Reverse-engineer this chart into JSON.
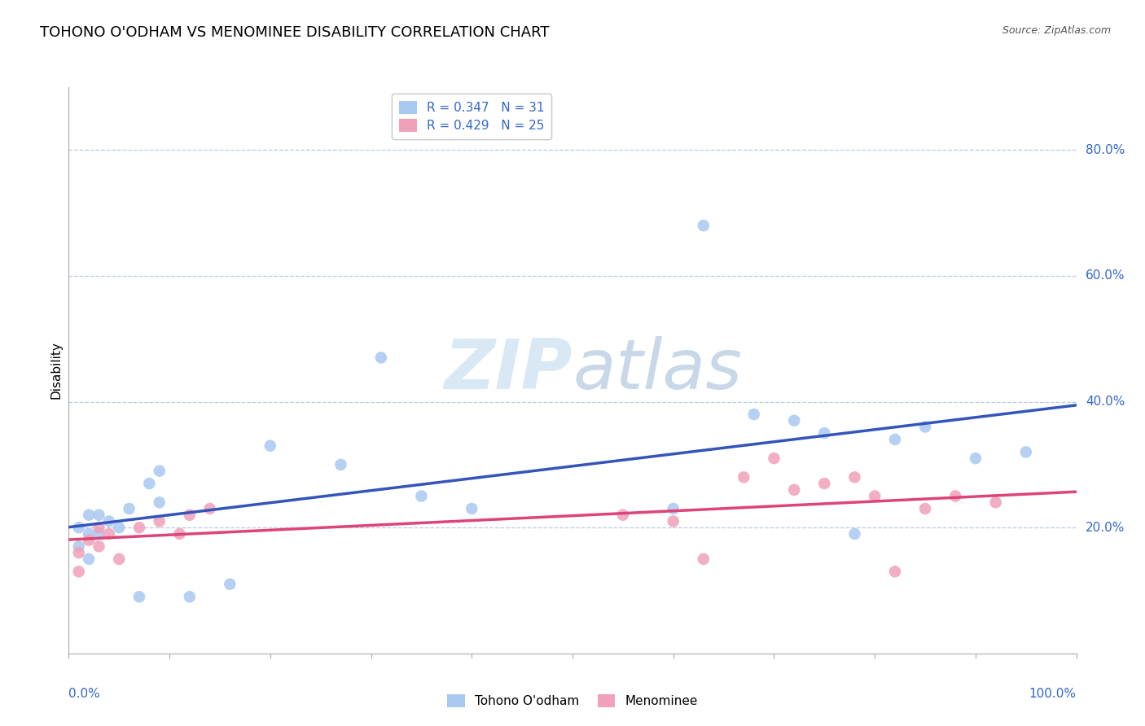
{
  "title": "TOHONO O'ODHAM VS MENOMINEE DISABILITY CORRELATION CHART",
  "source": "Source: ZipAtlas.com",
  "ylabel": "Disability",
  "y_ticks": [
    0.2,
    0.4,
    0.6,
    0.8
  ],
  "y_tick_labels": [
    "20.0%",
    "40.0%",
    "60.0%",
    "80.0%"
  ],
  "xlim": [
    0.0,
    1.0
  ],
  "ylim": [
    0.0,
    0.9
  ],
  "blue_R": "0.347",
  "blue_N": "31",
  "pink_R": "0.429",
  "pink_N": "25",
  "legend_label_blue": "Tohono O'odham",
  "legend_label_pink": "Menominee",
  "blue_color": "#A8C8F0",
  "pink_color": "#F0A0B8",
  "blue_line_color": "#3355BB",
  "pink_line_color": "#DD4477",
  "blue_x": [
    0.01,
    0.01,
    0.02,
    0.02,
    0.02,
    0.03,
    0.03,
    0.04,
    0.05,
    0.06,
    0.07,
    0.08,
    0.09,
    0.09,
    0.12,
    0.16,
    0.2,
    0.27,
    0.31,
    0.35,
    0.4,
    0.6,
    0.63,
    0.68,
    0.72,
    0.75,
    0.78,
    0.82,
    0.85,
    0.9,
    0.95
  ],
  "blue_y": [
    0.2,
    0.17,
    0.22,
    0.19,
    0.15,
    0.22,
    0.19,
    0.21,
    0.2,
    0.23,
    0.09,
    0.27,
    0.24,
    0.29,
    0.09,
    0.11,
    0.33,
    0.3,
    0.47,
    0.25,
    0.23,
    0.23,
    0.68,
    0.38,
    0.37,
    0.35,
    0.19,
    0.34,
    0.36,
    0.31,
    0.32
  ],
  "pink_x": [
    0.01,
    0.01,
    0.02,
    0.03,
    0.03,
    0.04,
    0.05,
    0.07,
    0.09,
    0.11,
    0.12,
    0.14,
    0.55,
    0.6,
    0.63,
    0.67,
    0.7,
    0.72,
    0.75,
    0.78,
    0.8,
    0.82,
    0.85,
    0.88,
    0.92
  ],
  "pink_y": [
    0.13,
    0.16,
    0.18,
    0.17,
    0.2,
    0.19,
    0.15,
    0.2,
    0.21,
    0.19,
    0.22,
    0.23,
    0.22,
    0.21,
    0.15,
    0.28,
    0.31,
    0.26,
    0.27,
    0.28,
    0.25,
    0.13,
    0.23,
    0.25,
    0.24
  ]
}
